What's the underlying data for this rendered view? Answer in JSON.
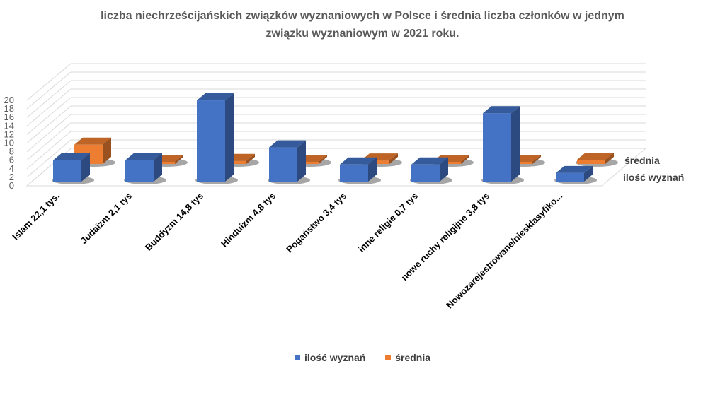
{
  "chart_data": {
    "type": "bar",
    "title": "liczba niechrześcijańskich związków wyznaniowych w Polsce i średnia liczba członków w jednym związku wyznaniowym w 2021 roku.",
    "categories": [
      "Islam  22,1 tys.",
      "Judaizm  2,1 tys",
      "Buddyzm 14,8 tys",
      "Hinduizm 4,8 tys",
      "Pogaństwo 3,4 tys",
      "inne religie  0,7 tys",
      "nowe ruchy religijne 3,8 tys",
      "Nowozarejestrowane/niesklasyfiko..."
    ],
    "series": [
      {
        "name": "ilość wyznań",
        "color": "#4472C4",
        "values": [
          5,
          5,
          19,
          8,
          4,
          4,
          16,
          2
        ]
      },
      {
        "name": "średnia",
        "color": "#ED7D31",
        "values": [
          4.5,
          0.5,
          0.7,
          0.5,
          0.8,
          0.3,
          0.3,
          1
        ]
      }
    ],
    "yticks": [
      "0",
      "2",
      "4",
      "6",
      "8",
      "10",
      "12",
      "14",
      "16",
      "18",
      "20"
    ],
    "ylim": [
      0,
      20
    ],
    "grid": true,
    "legend": "bottom",
    "xlabel": "",
    "ylabel": ""
  }
}
